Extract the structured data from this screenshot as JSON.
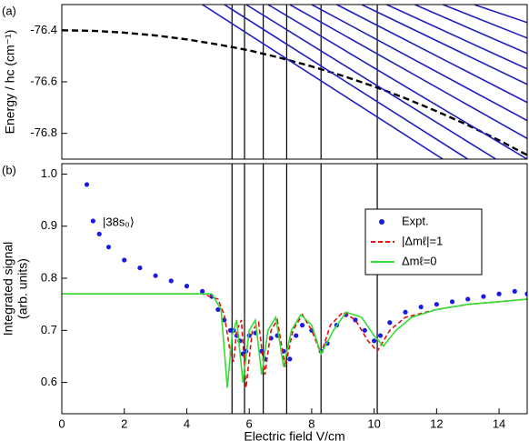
{
  "chart_data": [
    {
      "type": "line",
      "panel_label": "(a)",
      "ylabel": "Energy / hc (cm⁻¹)",
      "xlim": [
        0,
        14.9
      ],
      "ylim": [
        -76.9,
        -76.3
      ],
      "yticks": [
        -76.4,
        -76.6,
        -76.8
      ],
      "series": [
        {
          "color": "#000000",
          "dash": true,
          "x": [
            0,
            1,
            2,
            3,
            4,
            5,
            6,
            7,
            8,
            9,
            10,
            11,
            12,
            13,
            14,
            14.9
          ],
          "values": [
            -76.4,
            -76.402,
            -76.409,
            -76.42,
            -76.435,
            -76.455,
            -76.478,
            -76.507,
            -76.54,
            -76.577,
            -76.618,
            -76.664,
            -76.714,
            -76.768,
            -76.827,
            -76.884
          ]
        },
        {
          "color": "#1f1fc0",
          "x": [
            4.5,
            12.2
          ],
          "values": [
            -76.3,
            -76.9
          ]
        },
        {
          "color": "#1f1fc0",
          "x": [
            5.2,
            13.0
          ],
          "values": [
            -76.3,
            -76.9
          ]
        },
        {
          "color": "#1f1fc0",
          "x": [
            5.9,
            13.9
          ],
          "values": [
            -76.3,
            -76.9
          ]
        },
        {
          "color": "#1f1fc0",
          "x": [
            6.6,
            14.9
          ],
          "values": [
            -76.3,
            -76.9
          ]
        },
        {
          "color": "#1f1fc0",
          "x": [
            7.3,
            14.9
          ],
          "values": [
            -76.3,
            -76.82
          ]
        },
        {
          "color": "#1f1fc0",
          "x": [
            8.0,
            14.9
          ],
          "values": [
            -76.3,
            -76.75
          ]
        },
        {
          "color": "#1f1fc0",
          "x": [
            8.8,
            14.9
          ],
          "values": [
            -76.3,
            -76.68
          ]
        },
        {
          "color": "#1f1fc0",
          "x": [
            9.6,
            14.9
          ],
          "values": [
            -76.3,
            -76.61
          ]
        },
        {
          "color": "#1f1fc0",
          "x": [
            10.4,
            14.9
          ],
          "values": [
            -76.3,
            -76.55
          ]
        },
        {
          "color": "#1f1fc0",
          "x": [
            11.3,
            14.9
          ],
          "values": [
            -76.3,
            -76.49
          ]
        },
        {
          "color": "#1f1fc0",
          "x": [
            12.2,
            14.9
          ],
          "values": [
            -76.3,
            -76.43
          ]
        },
        {
          "color": "#1f1fc0",
          "x": [
            13.2,
            14.9
          ],
          "values": [
            -76.3,
            -76.37
          ]
        }
      ]
    },
    {
      "type": "line",
      "panel_label": "(b)",
      "ylabel": [
        "Integrated signal",
        "(arb. units)"
      ],
      "xlabel": "Electric field V/cm",
      "annotation": "|38s₀⟩",
      "legend": "upper right",
      "xlim": [
        0,
        14.9
      ],
      "ylim": [
        0.54,
        1.02
      ],
      "xticks": [
        0,
        2,
        4,
        6,
        8,
        10,
        12,
        14
      ],
      "yticks": [
        0.6,
        0.7,
        0.8,
        0.9,
        {
          "value": 1.0,
          "label": "1.0"
        }
      ],
      "vlines": [
        5.45,
        5.85,
        6.45,
        7.2,
        8.3,
        10.1
      ],
      "series": [
        {
          "name": "Expt.",
          "color": "#1a1ae6",
          "marker": true,
          "x": [
            0.8,
            1.0,
            1.2,
            1.5,
            2.0,
            2.5,
            3.0,
            3.5,
            4.0,
            4.5,
            4.8,
            5.0,
            5.2,
            5.4,
            5.5,
            5.6,
            5.7,
            5.8,
            5.9,
            6.0,
            6.2,
            6.4,
            6.5,
            6.7,
            6.9,
            7.1,
            7.3,
            7.5,
            7.7,
            8.0,
            8.3,
            8.5,
            8.8,
            9.1,
            9.4,
            9.7,
            10.0,
            10.2,
            10.5,
            11.0,
            11.5,
            12.0,
            12.5,
            13.0,
            13.5,
            14.0,
            14.5,
            14.9
          ],
          "values": [
            0.98,
            0.91,
            0.885,
            0.86,
            0.835,
            0.82,
            0.805,
            0.795,
            0.785,
            0.775,
            0.765,
            0.74,
            0.72,
            0.7,
            0.7,
            0.69,
            0.68,
            0.655,
            0.66,
            0.69,
            0.695,
            0.66,
            0.645,
            0.685,
            0.69,
            0.66,
            0.645,
            0.69,
            0.71,
            0.7,
            0.66,
            0.675,
            0.71,
            0.73,
            0.72,
            0.7,
            0.68,
            0.69,
            0.715,
            0.735,
            0.745,
            0.75,
            0.755,
            0.76,
            0.765,
            0.77,
            0.775,
            0.77
          ]
        },
        {
          "name": "|Δmℓ|=1",
          "color": "#e01010",
          "dash": true,
          "x": [
            0,
            4.5,
            5.0,
            5.2,
            5.4,
            5.5,
            5.6,
            5.75,
            5.9,
            6.1,
            6.3,
            6.5,
            6.7,
            6.9,
            7.15,
            7.4,
            7.7,
            8.0,
            8.3,
            8.6,
            9.0,
            9.4,
            9.8,
            10.1,
            10.5,
            11.0,
            12,
            13,
            14,
            14.9
          ],
          "values": [
            0.77,
            0.77,
            0.76,
            0.73,
            0.655,
            0.64,
            0.7,
            0.72,
            0.59,
            0.7,
            0.715,
            0.615,
            0.7,
            0.72,
            0.63,
            0.7,
            0.73,
            0.7,
            0.655,
            0.71,
            0.735,
            0.72,
            0.68,
            0.66,
            0.7,
            0.725,
            0.74,
            0.75,
            0.755,
            0.76
          ]
        },
        {
          "name": "Δmℓ=0",
          "color": "#33dd33",
          "x": [
            0,
            4.8,
            5.1,
            5.3,
            5.45,
            5.6,
            5.8,
            6.0,
            6.2,
            6.4,
            6.6,
            6.85,
            7.1,
            7.35,
            7.65,
            8.0,
            8.3,
            8.7,
            9.1,
            9.6,
            10.0,
            10.3,
            10.7,
            11.2,
            12,
            13,
            14,
            14.9
          ],
          "values": [
            0.77,
            0.77,
            0.74,
            0.59,
            0.69,
            0.72,
            0.6,
            0.7,
            0.72,
            0.615,
            0.7,
            0.725,
            0.63,
            0.7,
            0.73,
            0.71,
            0.655,
            0.7,
            0.735,
            0.725,
            0.69,
            0.67,
            0.7,
            0.725,
            0.74,
            0.75,
            0.755,
            0.76
          ]
        }
      ]
    }
  ]
}
